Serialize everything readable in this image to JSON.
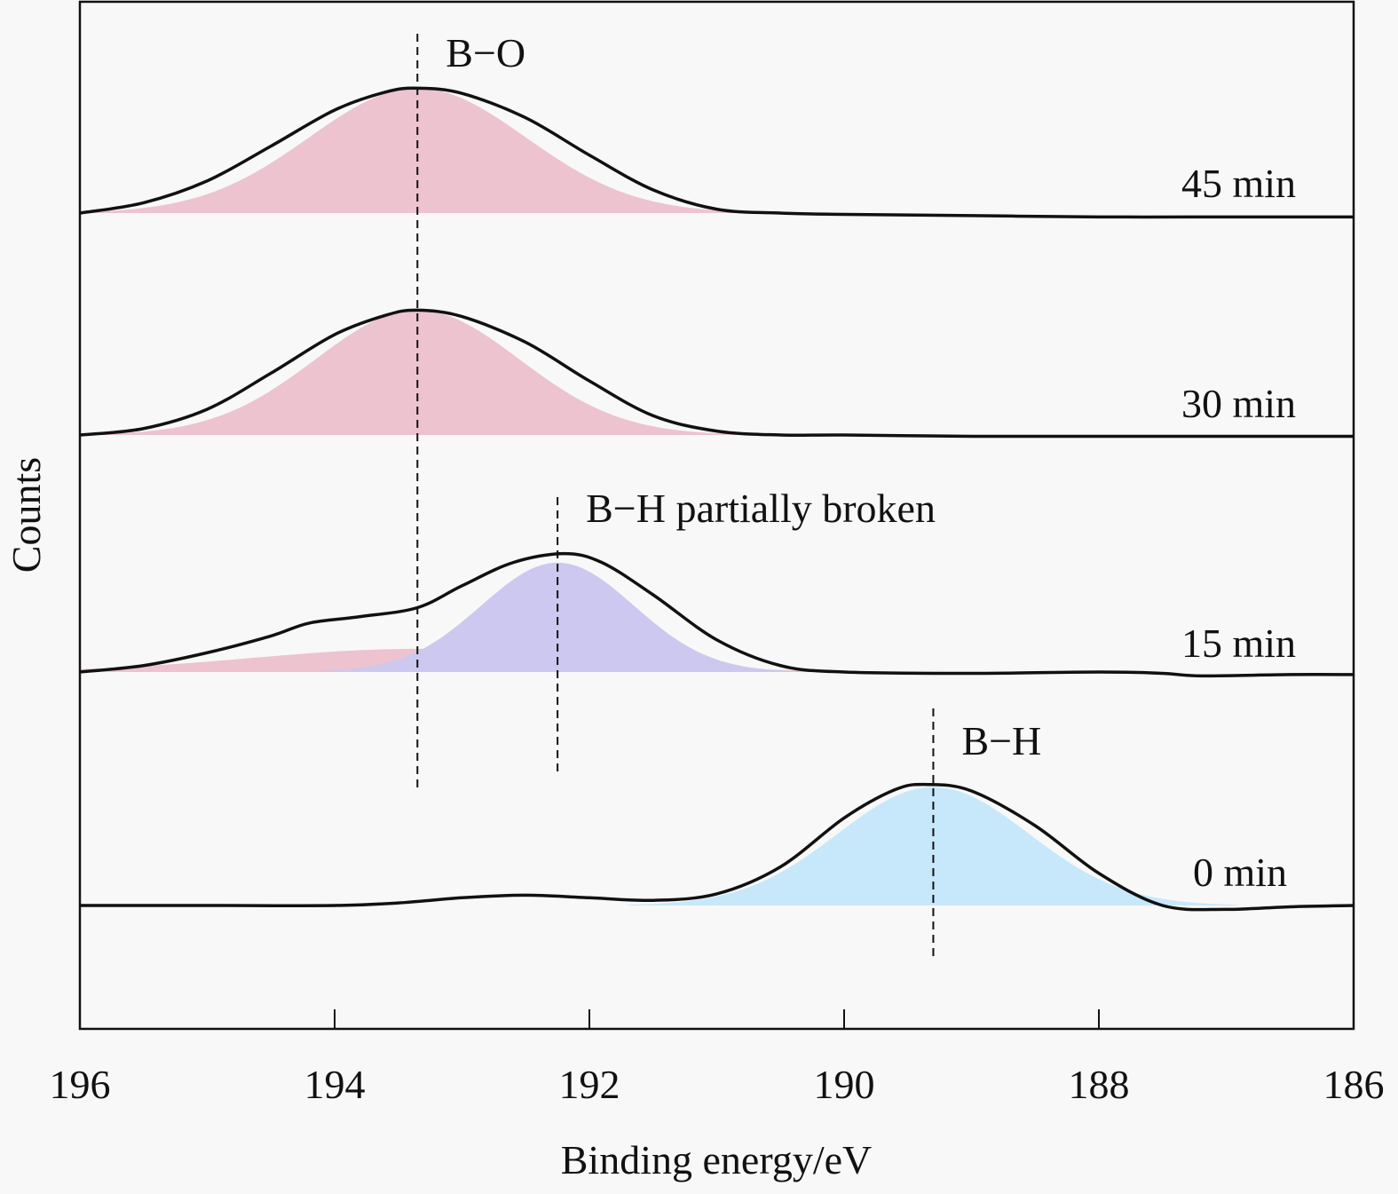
{
  "chart_data": {
    "type": "area",
    "title": "",
    "xlabel": "Binding energy/eV",
    "ylabel": "Counts",
    "xlim": [
      196,
      186
    ],
    "x_reversed": true,
    "xticks": [
      196,
      194,
      192,
      190,
      188,
      186
    ],
    "grid": false,
    "y_units": "arbitrary (stacked, offset spectra)",
    "series": [
      {
        "name": "45 min",
        "label": "45 min",
        "baseline_offset": 3,
        "curve": {
          "x": [
            196,
            195.5,
            195,
            194.5,
            194,
            193.6,
            193.35,
            193,
            192.5,
            192,
            191.5,
            191.0,
            190.5,
            190,
            189,
            188,
            187,
            186
          ],
          "y": [
            0.0,
            0.08,
            0.25,
            0.52,
            0.8,
            0.94,
            0.97,
            0.93,
            0.74,
            0.45,
            0.18,
            0.03,
            0.0,
            -0.01,
            -0.02,
            -0.03,
            -0.03,
            -0.03
          ]
        },
        "components": [
          {
            "name": "B-O",
            "color": "#ecc3cf",
            "center": 193.35,
            "amplitude": 0.97,
            "sigma": 0.85
          }
        ]
      },
      {
        "name": "30 min",
        "label": "30 min",
        "baseline_offset": 2,
        "curve": {
          "x": [
            196,
            195.5,
            195,
            194.5,
            194,
            193.6,
            193.35,
            193,
            192.5,
            192,
            191.5,
            191.0,
            190.5,
            190,
            189,
            188,
            187,
            186
          ],
          "y": [
            0.0,
            0.05,
            0.2,
            0.48,
            0.78,
            0.93,
            0.97,
            0.92,
            0.72,
            0.42,
            0.15,
            0.03,
            0.0,
            0.0,
            -0.01,
            -0.01,
            -0.01,
            -0.01
          ]
        },
        "components": [
          {
            "name": "B-O",
            "color": "#ecc3cf",
            "center": 193.35,
            "amplitude": 0.97,
            "sigma": 0.8
          }
        ]
      },
      {
        "name": "15 min",
        "label": "15 min",
        "baseline_offset": 1,
        "curve": {
          "x": [
            196,
            195.5,
            195,
            194.5,
            194.2,
            193.8,
            193.35,
            193,
            192.6,
            192.2,
            191.9,
            191.5,
            191.0,
            190.5,
            190,
            189,
            188,
            187.5,
            187.2,
            186.5,
            186
          ],
          "y": [
            0.0,
            0.05,
            0.15,
            0.28,
            0.38,
            0.43,
            0.5,
            0.67,
            0.85,
            0.92,
            0.85,
            0.6,
            0.25,
            0.05,
            0.0,
            -0.01,
            0.0,
            -0.01,
            -0.03,
            -0.02,
            -0.02
          ]
        },
        "components": [
          {
            "name": "B-O",
            "color": "#ecc3cf",
            "center": 193.35,
            "amplitude": 0.18,
            "sigma": 1.3
          },
          {
            "name": "B-H partially broken",
            "color": "#cdc8ef",
            "center": 192.25,
            "amplitude": 0.85,
            "sigma": 0.6
          }
        ]
      },
      {
        "name": "0 min",
        "label": "0 min",
        "baseline_offset": 0,
        "curve": {
          "x": [
            196,
            195,
            194,
            193.5,
            193,
            192.5,
            192,
            191.5,
            191,
            190.5,
            190,
            189.6,
            189.35,
            189,
            188.5,
            188,
            187.5,
            187,
            186.5,
            186
          ],
          "y": [
            0.0,
            0.0,
            0.0,
            0.02,
            0.06,
            0.08,
            0.06,
            0.04,
            0.09,
            0.3,
            0.68,
            0.9,
            0.94,
            0.89,
            0.62,
            0.25,
            0.0,
            -0.03,
            -0.01,
            0.0
          ]
        },
        "components": [
          {
            "name": "B-H",
            "color": "#c7e8fb",
            "center": 189.3,
            "amplitude": 0.92,
            "sigma": 0.75
          }
        ]
      }
    ],
    "annotations": [
      {
        "text": "B−O",
        "x": 193.35,
        "dashed_line": true
      },
      {
        "text": "B−H partially broken",
        "x": 192.25,
        "dashed_line": true
      },
      {
        "text": "B−H",
        "x": 189.3,
        "dashed_line": true
      }
    ]
  }
}
